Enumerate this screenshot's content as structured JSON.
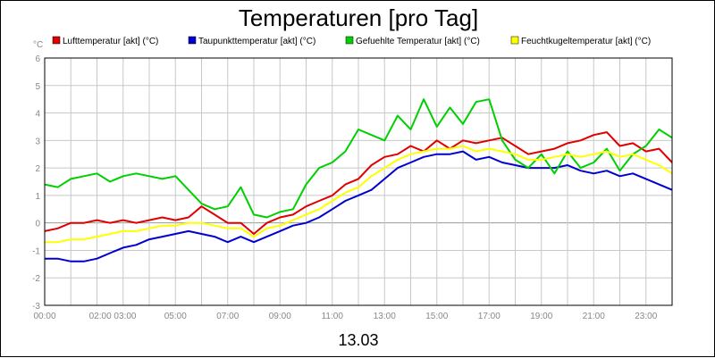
{
  "chart_data": {
    "type": "line",
    "title": "Temperaturen [pro Tag]",
    "xlabel": "13.03",
    "ylabel": "°C",
    "ylim": [
      -3,
      6
    ],
    "xlim": [
      0,
      24
    ],
    "grid": true,
    "legend_position": "top",
    "y_ticks": [
      "-3",
      "-2",
      "-1",
      "0",
      "1",
      "2",
      "3",
      "4",
      "5",
      "6"
    ],
    "x_ticks": [
      {
        "hour": 0,
        "label": "00:00"
      },
      {
        "hour": 2.6,
        "label": "02:00 03:00"
      },
      {
        "hour": 5,
        "label": "05:00"
      },
      {
        "hour": 7,
        "label": "07:00"
      },
      {
        "hour": 9,
        "label": "09:00"
      },
      {
        "hour": 11,
        "label": "11:00"
      },
      {
        "hour": 13,
        "label": "13:00"
      },
      {
        "hour": 15,
        "label": "15:00"
      },
      {
        "hour": 17,
        "label": "17:00"
      },
      {
        "hour": 19,
        "label": "19:00"
      },
      {
        "hour": 21,
        "label": "21:00"
      },
      {
        "hour": 23,
        "label": "23:00"
      }
    ],
    "series": [
      {
        "name": "Lufttemperatur [akt] (°C)",
        "color": "#e00000",
        "x": [
          0,
          0.5,
          1,
          1.5,
          2,
          2.5,
          3,
          3.5,
          4,
          4.5,
          5,
          5.5,
          6,
          6.5,
          7,
          7.5,
          8,
          8.5,
          9,
          9.5,
          10,
          10.5,
          11,
          11.5,
          12,
          12.5,
          13,
          13.5,
          14,
          14.5,
          15,
          15.5,
          16,
          16.5,
          17,
          17.5,
          18,
          18.5,
          19,
          19.5,
          20,
          20.5,
          21,
          21.5,
          22,
          22.5,
          23,
          23.5,
          24
        ],
        "values": [
          -0.3,
          -0.2,
          0.0,
          0.0,
          0.1,
          0.0,
          0.1,
          0.0,
          0.1,
          0.2,
          0.1,
          0.2,
          0.6,
          0.3,
          0.0,
          0.0,
          -0.4,
          0.0,
          0.2,
          0.3,
          0.6,
          0.8,
          1.0,
          1.4,
          1.6,
          2.1,
          2.4,
          2.5,
          2.8,
          2.6,
          3.0,
          2.7,
          3.0,
          2.9,
          3.0,
          3.1,
          2.8,
          2.5,
          2.6,
          2.7,
          2.9,
          3.0,
          3.2,
          3.3,
          2.8,
          2.9,
          2.6,
          2.7,
          2.2
        ]
      },
      {
        "name": "Taupunkttemperatur [akt] (°C)",
        "color": "#0000d0",
        "x": [
          0,
          0.5,
          1,
          1.5,
          2,
          2.5,
          3,
          3.5,
          4,
          4.5,
          5,
          5.5,
          6,
          6.5,
          7,
          7.5,
          8,
          8.5,
          9,
          9.5,
          10,
          10.5,
          11,
          11.5,
          12,
          12.5,
          13,
          13.5,
          14,
          14.5,
          15,
          15.5,
          16,
          16.5,
          17,
          17.5,
          18,
          18.5,
          19,
          19.5,
          20,
          20.5,
          21,
          21.5,
          22,
          22.5,
          23,
          23.5,
          24
        ],
        "values": [
          -1.3,
          -1.3,
          -1.4,
          -1.4,
          -1.3,
          -1.1,
          -0.9,
          -0.8,
          -0.6,
          -0.5,
          -0.4,
          -0.3,
          -0.4,
          -0.5,
          -0.7,
          -0.5,
          -0.7,
          -0.5,
          -0.3,
          -0.1,
          0.0,
          0.2,
          0.5,
          0.8,
          1.0,
          1.2,
          1.6,
          2.0,
          2.2,
          2.4,
          2.5,
          2.5,
          2.6,
          2.3,
          2.4,
          2.2,
          2.1,
          2.0,
          2.0,
          2.0,
          2.1,
          1.9,
          1.8,
          1.9,
          1.7,
          1.8,
          1.6,
          1.4,
          1.2
        ]
      },
      {
        "name": "Gefuehlte Temperatur [akt] (°C)",
        "color": "#00d000",
        "x": [
          0,
          0.5,
          1,
          1.5,
          2,
          2.5,
          3,
          3.5,
          4,
          4.5,
          5,
          5.5,
          6,
          6.5,
          7,
          7.5,
          8,
          8.5,
          9,
          9.5,
          10,
          10.5,
          11,
          11.5,
          12,
          12.5,
          13,
          13.5,
          14,
          14.5,
          15,
          15.5,
          16,
          16.5,
          17,
          17.5,
          18,
          18.5,
          19,
          19.5,
          20,
          20.5,
          21,
          21.5,
          22,
          22.5,
          23,
          23.5,
          24
        ],
        "values": [
          1.4,
          1.3,
          1.6,
          1.7,
          1.8,
          1.5,
          1.7,
          1.8,
          1.7,
          1.6,
          1.7,
          1.2,
          0.7,
          0.5,
          0.6,
          1.3,
          0.3,
          0.2,
          0.4,
          0.5,
          1.4,
          2.0,
          2.2,
          2.6,
          3.4,
          3.2,
          3.0,
          3.9,
          3.4,
          4.5,
          3.5,
          4.2,
          3.6,
          4.4,
          4.5,
          3.0,
          2.3,
          2.0,
          2.5,
          1.8,
          2.6,
          2.0,
          2.2,
          2.7,
          1.9,
          2.5,
          2.8,
          3.4,
          3.1
        ]
      },
      {
        "name": "Feuchtkugeltemperatur [akt] (°C)",
        "color": "#ffff00",
        "x": [
          0,
          0.5,
          1,
          1.5,
          2,
          2.5,
          3,
          3.5,
          4,
          4.5,
          5,
          5.5,
          6,
          6.5,
          7,
          7.5,
          8,
          8.5,
          9,
          9.5,
          10,
          10.5,
          11,
          11.5,
          12,
          12.5,
          13,
          13.5,
          14,
          14.5,
          15,
          15.5,
          16,
          16.5,
          17,
          17.5,
          18,
          18.5,
          19,
          19.5,
          20,
          20.5,
          21,
          21.5,
          22,
          22.5,
          23,
          23.5,
          24
        ],
        "values": [
          -0.7,
          -0.7,
          -0.6,
          -0.6,
          -0.5,
          -0.4,
          -0.3,
          -0.3,
          -0.2,
          -0.1,
          -0.1,
          0.0,
          0.0,
          -0.1,
          -0.2,
          -0.2,
          -0.5,
          -0.2,
          -0.1,
          0.1,
          0.3,
          0.5,
          0.8,
          1.1,
          1.3,
          1.7,
          2.0,
          2.3,
          2.5,
          2.6,
          2.7,
          2.7,
          2.8,
          2.6,
          2.7,
          2.6,
          2.5,
          2.3,
          2.3,
          2.4,
          2.5,
          2.4,
          2.5,
          2.6,
          2.4,
          2.5,
          2.3,
          2.1,
          1.8
        ]
      }
    ]
  }
}
